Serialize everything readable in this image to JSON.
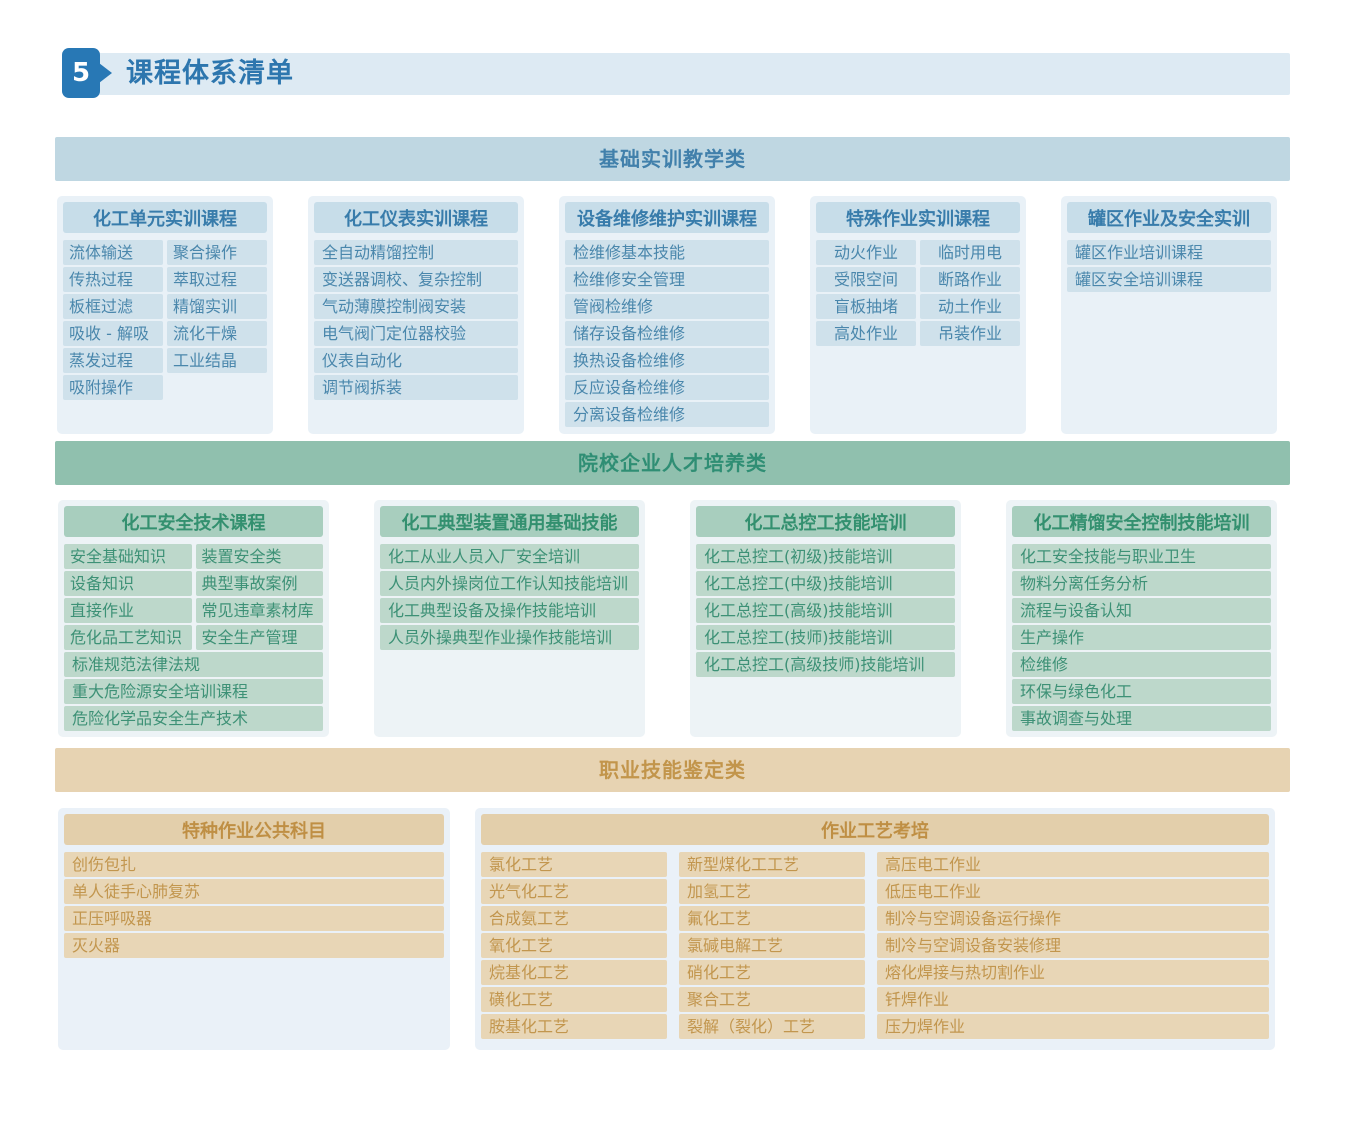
{
  "page": {
    "badge": "5",
    "title": "课程体系清单"
  },
  "colors": {
    "page": {
      "page_bg": "#ffffff",
      "badge_bg": "#2878b5",
      "badge_text": "#ffffff",
      "header_bar_bg": "#ddeaf3",
      "title_text": "#2d76ae"
    },
    "s1": {
      "banner_bg": "#bfd7e2",
      "banner_text": "#4180ab",
      "panel_bg": "#e9f1f7",
      "header_bg": "#c7dde9",
      "header_text": "#387cab",
      "item_bg": "#cfe1eb",
      "item_text": "#4a87ac"
    },
    "s2": {
      "banner_bg": "#90c0ae",
      "banner_text": "#2f8e74",
      "panel_bg": "#edf3f6",
      "header_bg": "#a8cebe",
      "header_text": "#33906f",
      "item_bg": "#bdd8cb",
      "item_text": "#3d9176"
    },
    "s3": {
      "banner_bg": "#e7d3b2",
      "banner_text": "#c2954b",
      "panel_bg": "#eaf1f8",
      "header_bg": "#e3cfab",
      "header_text": "#bf8f44",
      "item_bg": "#e8d6b6",
      "item_text": "#c2964e"
    }
  },
  "sections": [
    {
      "name": "basic-training",
      "theme": "s1",
      "banner": "基础实训教学类",
      "row_class": "cols5",
      "panels": [
        {
          "header": "化工单元实训课程",
          "blocks": [
            {
              "layout": "grid2",
              "align": "left",
              "items": [
                "流体输送",
                "聚合操作",
                "传热过程",
                "萃取过程",
                "板框过滤",
                "精馏实训",
                "吸收 - 解吸",
                "流化干燥",
                "蒸发过程",
                "工业结晶",
                "吸附操作"
              ]
            }
          ]
        },
        {
          "header": "化工仪表实训课程",
          "blocks": [
            {
              "layout": "list",
              "items": [
                "全自动精馏控制",
                "变送器调校、复杂控制",
                "气动薄膜控制阀安装",
                "电气阀门定位器校验",
                "仪表自动化",
                "调节阀拆装"
              ]
            }
          ]
        },
        {
          "header": "设备维修维护实训课程",
          "blocks": [
            {
              "layout": "list",
              "items": [
                "检维修基本技能",
                "检维修安全管理",
                "管阀检维修",
                "储存设备检维修",
                "换热设备检维修",
                "反应设备检维修",
                "分离设备检维修"
              ]
            }
          ]
        },
        {
          "header": "特殊作业实训课程",
          "blocks": [
            {
              "layout": "grid2",
              "align": "center",
              "items": [
                "动火作业",
                "临时用电",
                "受限空间",
                "断路作业",
                "盲板抽堵",
                "动土作业",
                "高处作业",
                "吊装作业"
              ]
            }
          ]
        },
        {
          "header": "罐区作业及安全实训",
          "blocks": [
            {
              "layout": "list",
              "items": [
                "罐区作业培训课程",
                "罐区安全培训课程"
              ]
            }
          ]
        }
      ]
    },
    {
      "name": "talent-cultivation",
      "theme": "s2",
      "banner": "院校企业人才培养类",
      "row_class": "cols4",
      "panels": [
        {
          "header": "化工安全技术课程",
          "blocks": [
            {
              "layout": "grid2",
              "align": "left",
              "items": [
                "安全基础知识",
                "装置安全类",
                "设备知识",
                "典型事故案例",
                "直接作业",
                "常见违章素材库",
                "危化品工艺知识",
                "安全生产管理"
              ]
            },
            {
              "layout": "list",
              "items": [
                "标准规范法律法规",
                "重大危险源安全培训课程",
                "危险化学品安全生产技术"
              ]
            }
          ]
        },
        {
          "header": "化工典型装置通用基础技能",
          "blocks": [
            {
              "layout": "list",
              "items": [
                "化工从业人员入厂安全培训",
                "人员内外操岗位工作认知技能培训",
                "化工典型设备及操作技能培训",
                "人员外操典型作业操作技能培训"
              ]
            }
          ]
        },
        {
          "header": "化工总控工技能培训",
          "blocks": [
            {
              "layout": "list",
              "items": [
                "化工总控工(初级)技能培训",
                "化工总控工(中级)技能培训",
                "化工总控工(高级)技能培训",
                "化工总控工(技师)技能培训",
                "化工总控工(高级技师)技能培训"
              ]
            }
          ]
        },
        {
          "header": "化工精馏安全控制技能培训",
          "blocks": [
            {
              "layout": "list",
              "items": [
                "化工安全技能与职业卫生",
                "物料分离任务分析",
                "流程与设备认知",
                "生产操作",
                "检维修",
                "环保与绿色化工",
                "事故调查与处理"
              ]
            }
          ]
        }
      ]
    },
    {
      "name": "skill-appraisal",
      "theme": "s3",
      "banner": "职业技能鉴定类",
      "row_class": "split",
      "panels": [
        {
          "header": "特种作业公共科目",
          "blocks": [
            {
              "layout": "list",
              "items": [
                "创伤包扎",
                "单人徒手心肺复苏",
                "正压呼吸器",
                "灭火器"
              ]
            }
          ]
        },
        {
          "header": "作业工艺考培",
          "blocks": [
            {
              "layout": "cols3",
              "columns": [
                [
                  "氯化工艺",
                  "光气化工艺",
                  "合成氨工艺",
                  "氧化工艺",
                  "烷基化工艺",
                  "磺化工艺",
                  "胺基化工艺"
                ],
                [
                  "新型煤化工工艺",
                  "加氢工艺",
                  "氟化工艺",
                  "氯碱电解工艺",
                  "硝化工艺",
                  "聚合工艺",
                  "裂解（裂化）工艺"
                ],
                [
                  "高压电工作业",
                  "低压电工作业",
                  "制冷与空调设备运行操作",
                  "制冷与空调设备安装修理",
                  "熔化焊接与热切割作业",
                  "钎焊作业",
                  "压力焊作业"
                ]
              ]
            }
          ]
        }
      ]
    }
  ]
}
